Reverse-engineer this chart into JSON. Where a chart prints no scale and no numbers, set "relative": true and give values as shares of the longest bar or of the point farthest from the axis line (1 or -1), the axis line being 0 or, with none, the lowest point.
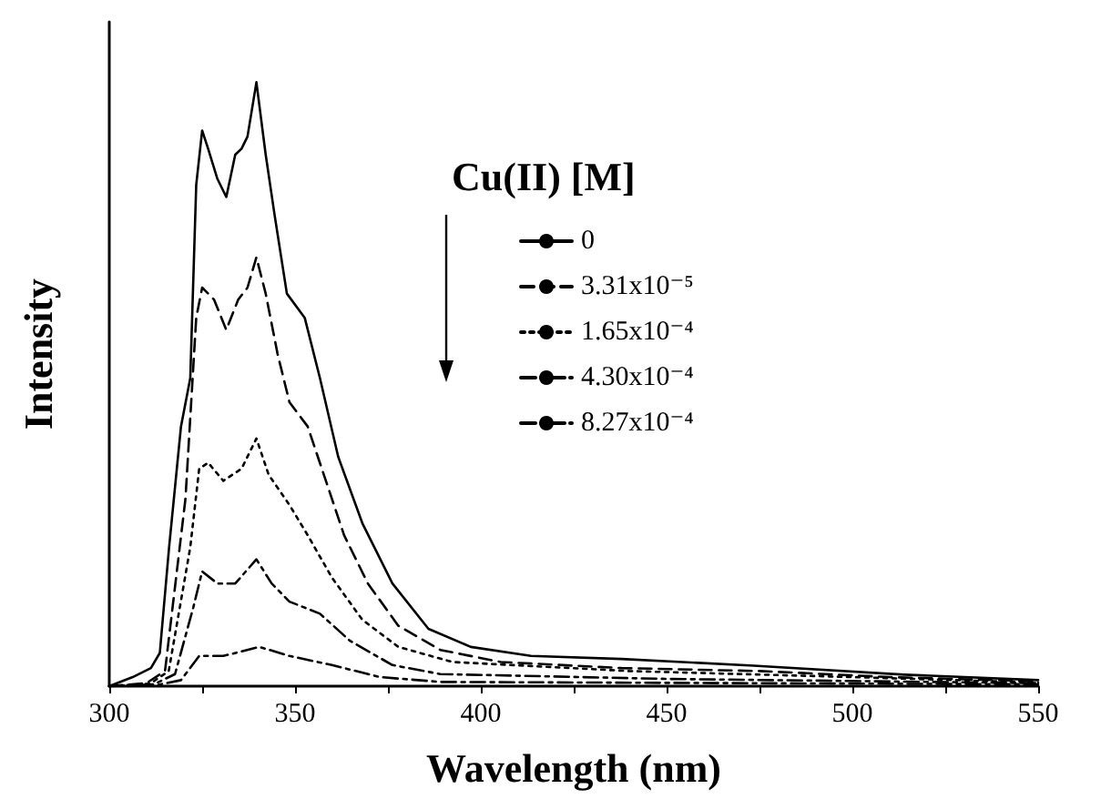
{
  "chart_data": {
    "type": "line",
    "relative": true,
    "xlabel": "Wavelength (nm)",
    "ylabel": "Intensity",
    "legend_title": "Cu(II) [M]",
    "legend": "top right",
    "grid": false,
    "marker": "none",
    "xlim": [
      300,
      550
    ],
    "xticks": [
      300,
      {
        "value": 325,
        "label": null
      },
      350,
      {
        "value": 375,
        "label": null
      },
      400,
      {
        "value": 425,
        "label": null
      },
      450,
      {
        "value": 475,
        "label": null
      },
      500,
      {
        "value": 525,
        "label": null
      },
      550
    ],
    "series": [
      {
        "name": "0",
        "color": "#000000",
        "line_style": "solid",
        "x": [
          300,
          306.3,
          311.2,
          313.6,
          316.1,
          319.3,
          321.8,
          323.4,
          325,
          326.6,
          329.1,
          331.5,
          333.9,
          335.6,
          337.2,
          339.6,
          342.1,
          344.5,
          347.8,
          352.6,
          356.7,
          361.6,
          368.1,
          376.2,
          385.9,
          397.3,
          413.5,
          437.9,
          473.5,
          514,
          550
        ],
        "values": [
          0,
          0.015,
          0.03,
          0.055,
          0.23,
          0.43,
          0.51,
          0.83,
          0.92,
          0.89,
          0.84,
          0.81,
          0.88,
          0.89,
          0.91,
          1,
          0.88,
          0.78,
          0.65,
          0.61,
          0.51,
          0.38,
          0.27,
          0.17,
          0.095,
          0.065,
          0.05,
          0.045,
          0.034,
          0.019,
          0.01
        ]
      },
      {
        "name": "3.31x10⁻⁵",
        "color": "#000000",
        "line_style": "dashed",
        "x": [
          300,
          310,
          315,
          320.5,
          323.4,
          325,
          328.2,
          331.5,
          334.7,
          337.2,
          339.6,
          342.1,
          345.3,
          348.5,
          353.4,
          358.3,
          363.2,
          369.6,
          377.8,
          389.1,
          405.4,
          437.9,
          475,
          510,
          550
        ],
        "values": [
          0,
          0.005,
          0.025,
          0.31,
          0.61,
          0.66,
          0.64,
          0.59,
          0.64,
          0.66,
          0.71,
          0.65,
          0.55,
          0.47,
          0.43,
          0.34,
          0.25,
          0.17,
          0.1,
          0.06,
          0.04,
          0.03,
          0.025,
          0.015,
          0.008
        ]
      },
      {
        "name": "1.65x10⁻⁴",
        "color": "#000000",
        "line_style": "dotted",
        "x": [
          300,
          311,
          316,
          321.8,
          324.2,
          326.6,
          330.7,
          335.6,
          339.6,
          342.9,
          348.5,
          353.4,
          359.9,
          368.1,
          377.8,
          392.4,
          440,
          500,
          550
        ],
        "values": [
          0,
          0.004,
          0.025,
          0.23,
          0.36,
          0.37,
          0.34,
          0.36,
          0.41,
          0.35,
          0.3,
          0.25,
          0.18,
          0.11,
          0.065,
          0.04,
          0.025,
          0.015,
          0.006
        ]
      },
      {
        "name": "4.30x10⁻⁴",
        "color": "#000000",
        "line_style": "dashdot",
        "x": [
          300,
          312,
          317.7,
          322.6,
          325,
          329.1,
          333.9,
          339.6,
          343.7,
          348.5,
          356.7,
          364.8,
          376.2,
          389.1,
          450,
          550
        ],
        "values": [
          0,
          0.003,
          0.02,
          0.13,
          0.19,
          0.17,
          0.17,
          0.21,
          0.17,
          0.14,
          0.12,
          0.075,
          0.035,
          0.02,
          0.012,
          0.005
        ]
      },
      {
        "name": "8.27x10⁻⁴",
        "color": "#000000",
        "line_style": "dashdot",
        "x": [
          300,
          313,
          319.3,
          324.2,
          330.7,
          340.4,
          348.5,
          359.9,
          372.9,
          389.1,
          550
        ],
        "values": [
          0,
          0.002,
          0.01,
          0.05,
          0.05,
          0.065,
          0.05,
          0.035,
          0.015,
          0.007,
          0.003
        ]
      }
    ]
  }
}
